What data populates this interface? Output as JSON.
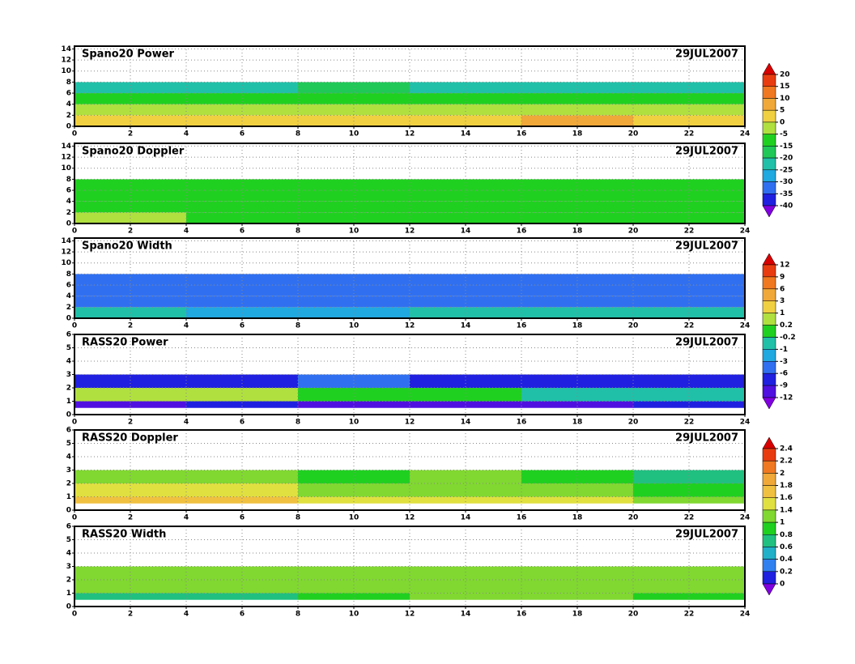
{
  "chart_data": [
    {
      "type": "heatmap",
      "title": "Spano20 Power",
      "annotation": "29JUL2007",
      "colorbar": 0,
      "x": [
        0,
        4,
        8,
        12,
        16,
        20,
        24
      ],
      "y": [
        0,
        2,
        4,
        6,
        8
      ],
      "values": [
        [
          2,
          4,
          3,
          3,
          5,
          4
        ],
        [
          -3,
          -2,
          -5,
          -3,
          -2,
          -4
        ],
        [
          -12,
          -10,
          -13,
          -12,
          -10,
          -12
        ],
        [
          -22,
          -24,
          -20,
          -21,
          -23,
          -22
        ]
      ],
      "xlim": [
        0,
        24
      ],
      "ylim": [
        0,
        14.5
      ],
      "xticks": [
        0,
        2,
        4,
        6,
        8,
        10,
        12,
        14,
        16,
        18,
        20,
        22,
        24
      ],
      "yticks": [
        0,
        2,
        4,
        6,
        8,
        10,
        12,
        14
      ],
      "grid": true
    },
    {
      "type": "heatmap",
      "title": "Spano20 Doppler",
      "annotation": "29JUL2007",
      "colorbar": 0,
      "x": [
        0,
        4,
        8,
        12,
        16,
        20,
        24
      ],
      "y": [
        0,
        2,
        4,
        6,
        8
      ],
      "values": [
        [
          -4,
          -6,
          -8,
          -6,
          -8,
          -8
        ],
        [
          -10,
          -10,
          -12,
          -10,
          -10,
          -10
        ],
        [
          -12,
          -12,
          -12,
          -12,
          -12,
          -12
        ],
        [
          -12,
          -13,
          -12,
          -12,
          -12,
          -12
        ]
      ],
      "xlim": [
        0,
        24
      ],
      "ylim": [
        0,
        14.5
      ],
      "xticks": [
        0,
        2,
        4,
        6,
        8,
        10,
        12,
        14,
        16,
        18,
        20,
        22,
        24
      ],
      "yticks": [
        0,
        2,
        4,
        6,
        8,
        10,
        12,
        14
      ],
      "grid": true
    },
    {
      "type": "heatmap",
      "title": "Spano20 Width",
      "annotation": "29JUL2007",
      "colorbar": 1,
      "x": [
        0,
        4,
        8,
        12,
        16,
        20,
        24
      ],
      "y": [
        0,
        2,
        4,
        6,
        8
      ],
      "values": [
        [
          -1,
          -2,
          -2,
          -1,
          -1,
          -1
        ],
        [
          -4,
          -4,
          -5,
          -4,
          -4,
          -4
        ],
        [
          -5,
          -5,
          -4,
          -5,
          -4,
          -4
        ],
        [
          -4,
          -5,
          -5,
          -4,
          -4,
          -5
        ]
      ],
      "xlim": [
        0,
        24
      ],
      "ylim": [
        0,
        14.5
      ],
      "xticks": [
        0,
        2,
        4,
        6,
        8,
        10,
        12,
        14,
        16,
        18,
        20,
        22,
        24
      ],
      "yticks": [
        0,
        2,
        4,
        6,
        8,
        10,
        12,
        14
      ],
      "grid": true
    },
    {
      "type": "heatmap",
      "title": "RASS20 Power",
      "annotation": "29JUL2007",
      "colorbar": 1,
      "x": [
        0,
        4,
        8,
        12,
        16,
        20,
        24
      ],
      "y": [
        0.5,
        1,
        2,
        3
      ],
      "values": [
        [
          -10,
          -9,
          -10,
          -10,
          -10,
          -9
        ],
        [
          0.5,
          0.5,
          0,
          0,
          -0.5,
          -1
        ],
        [
          -7,
          -7,
          -6,
          -8,
          -7,
          -7
        ]
      ],
      "xlim": [
        0,
        24
      ],
      "ylim": [
        0,
        6
      ],
      "xticks": [
        0,
        2,
        4,
        6,
        8,
        10,
        12,
        14,
        16,
        18,
        20,
        22,
        24
      ],
      "yticks": [
        0,
        1,
        2,
        3,
        4,
        5,
        6
      ],
      "grid": true
    },
    {
      "type": "heatmap",
      "title": "RASS20 Doppler",
      "annotation": "29JUL2007",
      "colorbar": 2,
      "x": [
        0,
        4,
        8,
        12,
        16,
        20,
        24
      ],
      "y": [
        0.5,
        1,
        2,
        3
      ],
      "values": [
        [
          1.6,
          1.6,
          1.4,
          1.5,
          1.4,
          1.2
        ],
        [
          1.5,
          1.5,
          1.2,
          1.2,
          1.1,
          0.9
        ],
        [
          1.1,
          1.1,
          0.9,
          1,
          0.8,
          0.7
        ]
      ],
      "xlim": [
        0,
        24
      ],
      "ylim": [
        0,
        6
      ],
      "xticks": [
        0,
        2,
        4,
        6,
        8,
        10,
        12,
        14,
        16,
        18,
        20,
        22,
        24
      ],
      "yticks": [
        0,
        1,
        2,
        3,
        4,
        5,
        6
      ],
      "grid": true
    },
    {
      "type": "heatmap",
      "title": "RASS20 Width",
      "annotation": "29JUL2007",
      "colorbar": 2,
      "x": [
        0,
        4,
        8,
        12,
        16,
        20,
        24
      ],
      "y": [
        0.5,
        1,
        2,
        3
      ],
      "values": [
        [
          0.7,
          0.6,
          0.9,
          1,
          1,
          0.8
        ],
        [
          1,
          1.1,
          1.2,
          1.1,
          1.2,
          1
        ],
        [
          1.1,
          1.1,
          1,
          1.1,
          1,
          1
        ]
      ],
      "xlim": [
        0,
        24
      ],
      "ylim": [
        0,
        6
      ],
      "xticks": [
        0,
        2,
        4,
        6,
        8,
        10,
        12,
        14,
        16,
        18,
        20,
        22,
        24
      ],
      "yticks": [
        0,
        1,
        2,
        3,
        4,
        5,
        6
      ],
      "grid": true
    }
  ],
  "colorbars": [
    {
      "levels": [
        20,
        15,
        10,
        5,
        0,
        -5,
        -15,
        -20,
        -25,
        -30,
        -35,
        -40
      ],
      "colors": [
        "#d80000",
        "#e83c10",
        "#f07820",
        "#f0a838",
        "#f0d040",
        "#b0e040",
        "#20d020",
        "#20c858",
        "#20c0a8",
        "#20a8e0",
        "#3070f0",
        "#2020e0",
        "#8000e0"
      ]
    },
    {
      "levels": [
        12,
        9,
        6,
        3,
        1,
        0.2,
        -0.2,
        -1,
        -3,
        -6,
        -9,
        -12
      ],
      "colors": [
        "#d80000",
        "#e83c10",
        "#f07820",
        "#f0a838",
        "#f0d040",
        "#b0e040",
        "#20d020",
        "#20c0a8",
        "#20a8e0",
        "#3070f0",
        "#2020e0",
        "#5010e0",
        "#8000e0"
      ]
    },
    {
      "levels": [
        2.4,
        2.2,
        2,
        1.8,
        1.6,
        1.4,
        1,
        0.8,
        0.6,
        0.4,
        0.2,
        0
      ],
      "colors": [
        "#d80000",
        "#e83c10",
        "#f07820",
        "#f0a838",
        "#f0c040",
        "#e0e040",
        "#80d830",
        "#20d020",
        "#20c080",
        "#20b0c8",
        "#3080f0",
        "#2020e0",
        "#8000e0"
      ]
    }
  ]
}
